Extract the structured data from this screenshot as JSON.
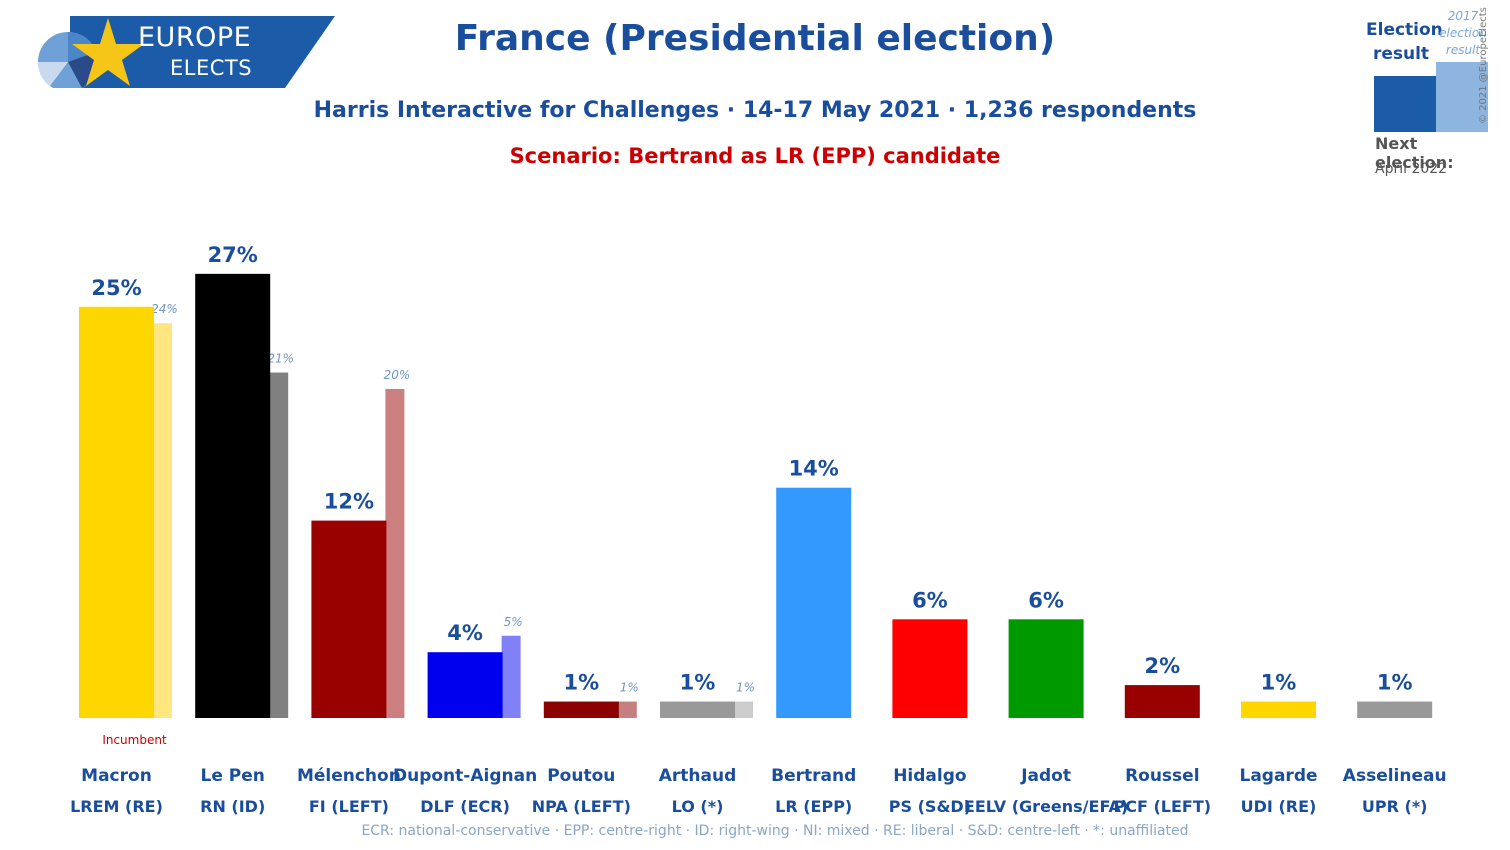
{
  "header": {
    "title": "France (Presidential election)",
    "subtitle": "Harris Interactive for Challenges · 14-17 May 2021 · 1,236 respondents",
    "scenario": "Scenario: Bertrand as LR (EPP) candidate"
  },
  "logo": {
    "line1": "EUROPE",
    "line2": "ELECTS"
  },
  "legend": {
    "current_label": "Election result",
    "previous_label": "2017 election result",
    "next_election_label": "Next election:",
    "next_election_date": "April 2022"
  },
  "copyright": "© 2021 @EuropeElects",
  "footnote": "ECR: national-conservative · EPP: centre-right · ID: right-wing · NI: mixed · RE: liberal · S&D: centre-left · *: unaffiliated",
  "chart_data": {
    "type": "bar",
    "categories": [
      "Macron",
      "Le Pen",
      "Mélenchon",
      "Dupont-Aignan",
      "Poutou",
      "Arthaud",
      "Bertrand",
      "Hidalgo",
      "Jadot",
      "Roussel",
      "Lagarde",
      "Asselineau"
    ],
    "parties": [
      "LREM (RE)",
      "RN (ID)",
      "FI (LEFT)",
      "DLF (ECR)",
      "NPA (LEFT)",
      "LO (*)",
      "LR (EPP)",
      "PS (S&D)",
      "EELV (Greens/EFA)",
      "PCF (LEFT)",
      "UDI (RE)",
      "UPR (*)"
    ],
    "series": [
      {
        "values": [
          25,
          27,
          12,
          4,
          1,
          1,
          14,
          6,
          6,
          2,
          1,
          1
        ],
        "labels": [
          "25%",
          "27%",
          "12%",
          "4%",
          "1%",
          "1%",
          "14%",
          "6%",
          "6%",
          "2%",
          "1%",
          "1%"
        ]
      },
      {
        "values": [
          24,
          21,
          20,
          5,
          1,
          1,
          null,
          null,
          null,
          null,
          null,
          null
        ],
        "labels": [
          "24%",
          "21%",
          "20%",
          "5%",
          "1%",
          "1%",
          null,
          null,
          null,
          null,
          null,
          null
        ]
      }
    ],
    "colors": [
      "#ffd700",
      "#000000",
      "#990000",
      "#0000ee",
      "#8b0000",
      "#999999",
      "#3399ff",
      "#ff0000",
      "#009900",
      "#990000",
      "#ffd700",
      "#999999"
    ],
    "prev_colors": [
      "#ffe680",
      "#808080",
      "#cc7f7f",
      "#8080f7",
      "#c67f7f",
      "#cccccc",
      null,
      null,
      null,
      null,
      null,
      null
    ],
    "annotation": "Incumbent",
    "annotation_index": 0
  }
}
